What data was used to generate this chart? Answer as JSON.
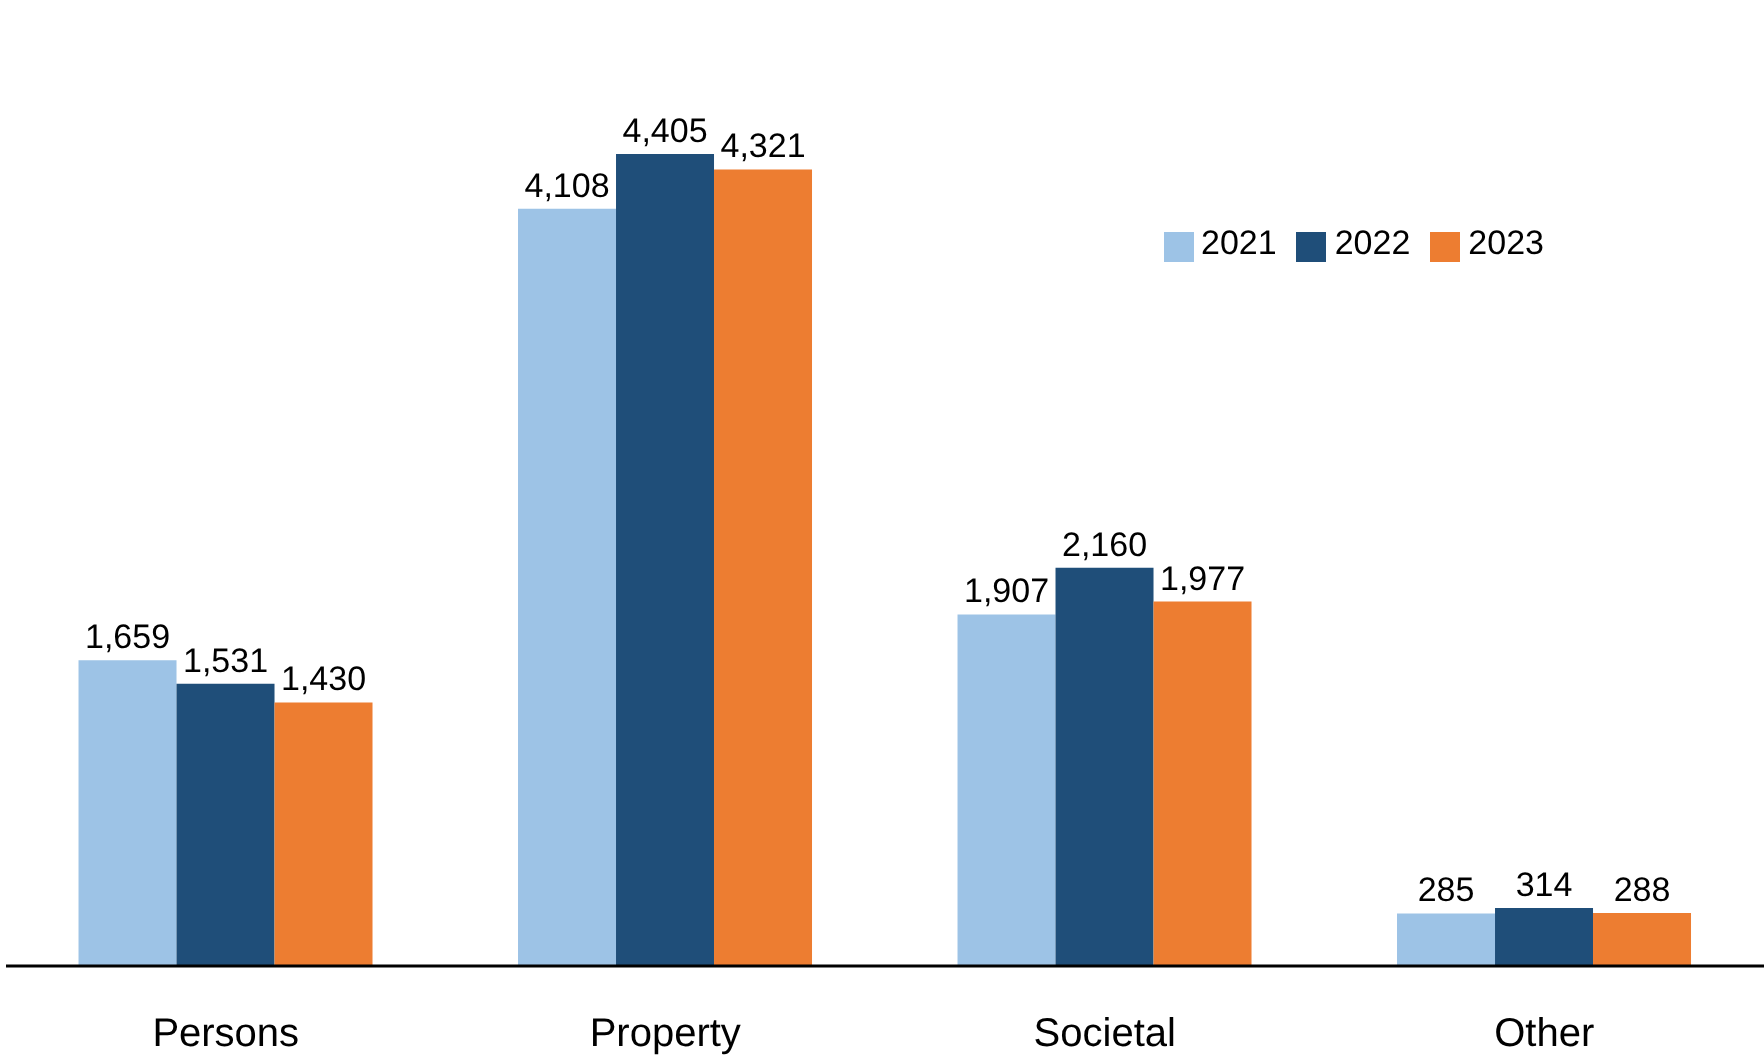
{
  "chart_data": {
    "type": "bar",
    "categories": [
      "Persons",
      "Property",
      "Societal",
      "Other"
    ],
    "series": [
      {
        "name": "2021",
        "color": "#9dc3e6",
        "values": [
          1659,
          4108,
          1907,
          285
        ],
        "value_labels": [
          "1,659",
          "4,108",
          "1,907",
          "285"
        ]
      },
      {
        "name": "2022",
        "color": "#1f4e79",
        "values": [
          1531,
          4405,
          2160,
          314
        ],
        "value_labels": [
          "1,531",
          "4,405",
          "2,160",
          "314"
        ]
      },
      {
        "name": "2023",
        "color": "#ed7d31",
        "values": [
          1430,
          4321,
          1977,
          288
        ],
        "value_labels": [
          "1,430",
          "4,321",
          "1,977",
          "288"
        ]
      }
    ],
    "legend": "top right"
  }
}
